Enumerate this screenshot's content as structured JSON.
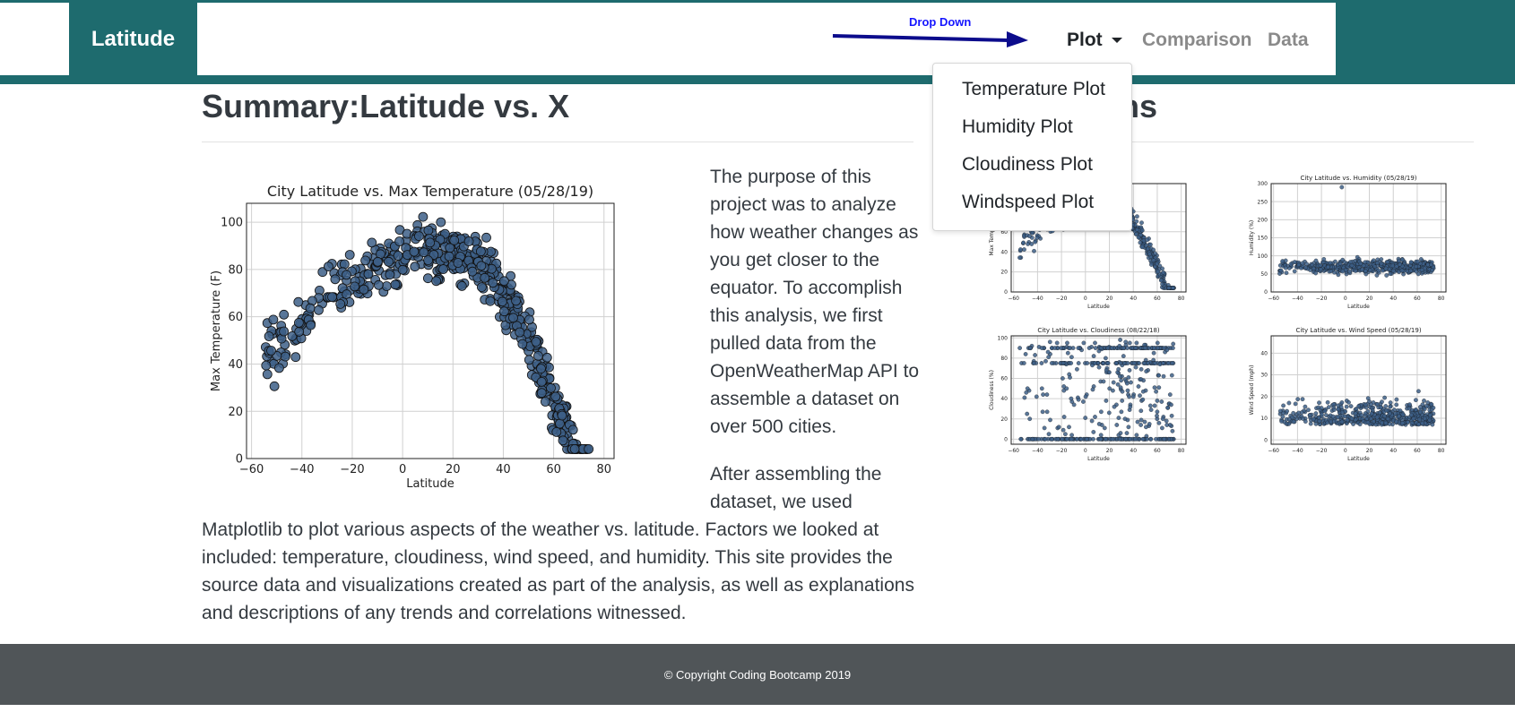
{
  "nav": {
    "brand": "Latitude",
    "plot_label": "Plot",
    "comparison_label": "Comparison",
    "data_label": "Data",
    "annotation": "Drop Down",
    "dropdown_items": [
      "Temperature Plot",
      "Humidity Plot",
      "Cloudiness Plot",
      "Windspeed Plot"
    ]
  },
  "summary": {
    "title": "Summary:Latitude vs. X",
    "para1": "The purpose of this project was to analyze how weather changes as you get closer to the equator. To accomplish this analysis, we first pulled data from the OpenWeatherMap API to assemble a dataset on over 500 cities.",
    "para2_a": "After assembling the dataset, we used",
    "para2_b": "Matplotlib to plot various aspects of the weather vs. latitude. Factors we looked at included: temperature, cloudiness, wind speed, and humidity. This site provides the source data and visualizations created as part of the analysis, as well as explanations and descriptions of any trends and correlations witnessed."
  },
  "visualizations": {
    "title_visible": "ons"
  },
  "footer": {
    "text": "© Copyright Coding Bootcamp 2019"
  },
  "colors": {
    "teal": "#1e6b6e",
    "point": "#3d5f87",
    "footer": "#505558"
  },
  "chart_data": [
    {
      "type": "scatter",
      "title": "City Latitude vs. Max Temperature (05/28/19)",
      "xlabel": "Latitude",
      "ylabel": "Max Temperature (F)",
      "xlim": [
        -62,
        84
      ],
      "ylim": [
        0,
        108
      ],
      "xticks": [
        "−60",
        "−40",
        "−20",
        "0",
        "20",
        "40",
        "60",
        "80"
      ],
      "yticks": [
        "0",
        "20",
        "40",
        "60",
        "80",
        "100"
      ],
      "grid": true,
      "shape": "n-curve",
      "n_points": 560
    },
    {
      "type": "scatter",
      "title": "City Latitude vs. Max Temperature (05/28/19)",
      "title_visible": "ture (05/28/19)",
      "xlabel": "Latitude",
      "ylabel": "Max Tempera",
      "xlim": [
        -62,
        84
      ],
      "ylim": [
        0,
        108
      ],
      "xticks": [
        "−60",
        "−40",
        "−20",
        "0",
        "20",
        "40",
        "60",
        "80"
      ],
      "yticks": [
        "0",
        "20",
        "40",
        "60",
        "80"
      ],
      "grid": true,
      "shape": "n-curve",
      "n_points": 500
    },
    {
      "type": "scatter",
      "title": "City Latitude vs. Humidity (05/28/19)",
      "xlabel": "Latitude",
      "ylabel": "Humidity (%)",
      "xlim": [
        -62,
        84
      ],
      "ylim": [
        0,
        300
      ],
      "xticks": [
        "−60",
        "−40",
        "−20",
        "0",
        "20",
        "40",
        "60",
        "80"
      ],
      "yticks": [
        "0",
        "50",
        "100",
        "150",
        "200",
        "250",
        "300"
      ],
      "grid": true,
      "shape": "humidity",
      "outlier": [
        -3,
        290
      ],
      "n_points": 500
    },
    {
      "type": "scatter",
      "title": "City Latitude vs. Cloudiness (08/22/18)",
      "xlabel": "Latitude",
      "ylabel": "Cloudiness (%)",
      "xlim": [
        -62,
        84
      ],
      "ylim": [
        -5,
        102
      ],
      "xticks": [
        "−60",
        "−40",
        "−20",
        "0",
        "20",
        "40",
        "60",
        "80"
      ],
      "yticks": [
        "0",
        "20",
        "40",
        "60",
        "80",
        "100"
      ],
      "grid": true,
      "shape": "cloudiness",
      "n_points": 500
    },
    {
      "type": "scatter",
      "title": "City Latitude vs. Wind Speed (05/28/19)",
      "xlabel": "Latitude",
      "ylabel": "Wind Speed (mph)",
      "xlim": [
        -62,
        84
      ],
      "ylim": [
        -2,
        48
      ],
      "xticks": [
        "−60",
        "−40",
        "−20",
        "0",
        "20",
        "40",
        "60",
        "80"
      ],
      "yticks": [
        "0",
        "10",
        "20",
        "30",
        "40"
      ],
      "grid": true,
      "shape": "wind",
      "n_points": 500
    }
  ]
}
